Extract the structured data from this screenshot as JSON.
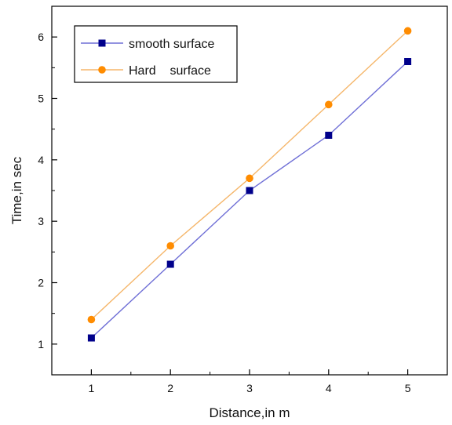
{
  "chart_data": {
    "type": "line",
    "xlabel": "Distance,in m",
    "ylabel": "Time,in sec",
    "xlim": [
      0.5,
      5.5
    ],
    "ylim": [
      0.5,
      6.5
    ],
    "x": [
      1,
      2,
      3,
      4,
      5
    ],
    "xticks": [
      "1",
      "2",
      "3",
      "4",
      "5"
    ],
    "yticks": [
      "1",
      "2",
      "3",
      "4",
      "5",
      "6"
    ],
    "grid": false,
    "legend_position": "top-left",
    "series": [
      {
        "name": "smooth surface",
        "marker": "square",
        "color": "#00008b",
        "line_color": "#6f6fd6",
        "values": [
          1.1,
          2.3,
          3.5,
          4.4,
          5.6
        ]
      },
      {
        "name": "Hard    surface",
        "marker": "circle",
        "color": "#ff8c00",
        "line_color": "#f5b66a",
        "values": [
          1.4,
          2.6,
          3.7,
          4.9,
          6.1
        ]
      }
    ]
  }
}
